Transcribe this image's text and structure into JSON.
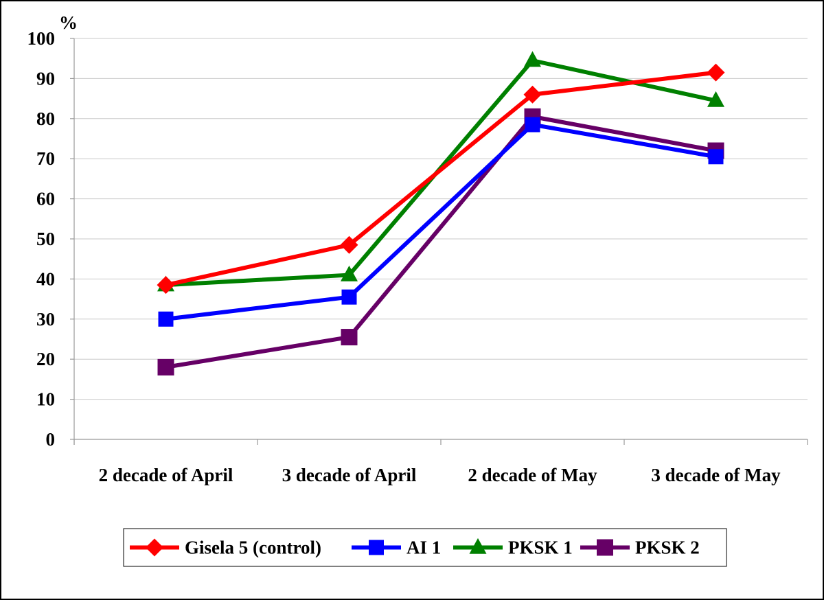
{
  "chart_data": {
    "type": "line",
    "title": "",
    "xlabel": "",
    "ylabel": "%",
    "ylim": [
      0,
      100
    ],
    "yticks": [
      0,
      10,
      20,
      30,
      40,
      50,
      60,
      70,
      80,
      90,
      100
    ],
    "grid": true,
    "legend_position": "bottom",
    "categories": [
      "2 decade of April",
      "3 decade of April",
      "2 decade of May",
      "3 decade of May"
    ],
    "series": [
      {
        "name": "Gisela 5 (control)",
        "values": [
          38.5,
          48.5,
          86,
          91.5
        ],
        "color": "#ff0000",
        "marker": "diamond"
      },
      {
        "name": "AI 1",
        "values": [
          30,
          35.5,
          78.5,
          70.5
        ],
        "color": "#0000ff",
        "marker": "square"
      },
      {
        "name": "PKSK 1",
        "values": [
          38.5,
          41,
          94.5,
          84.5
        ],
        "color": "#008000",
        "marker": "triangle"
      },
      {
        "name": "PKSK 2",
        "values": [
          18,
          25.5,
          80.5,
          72
        ],
        "color": "#660066",
        "marker": "square-large"
      }
    ]
  }
}
